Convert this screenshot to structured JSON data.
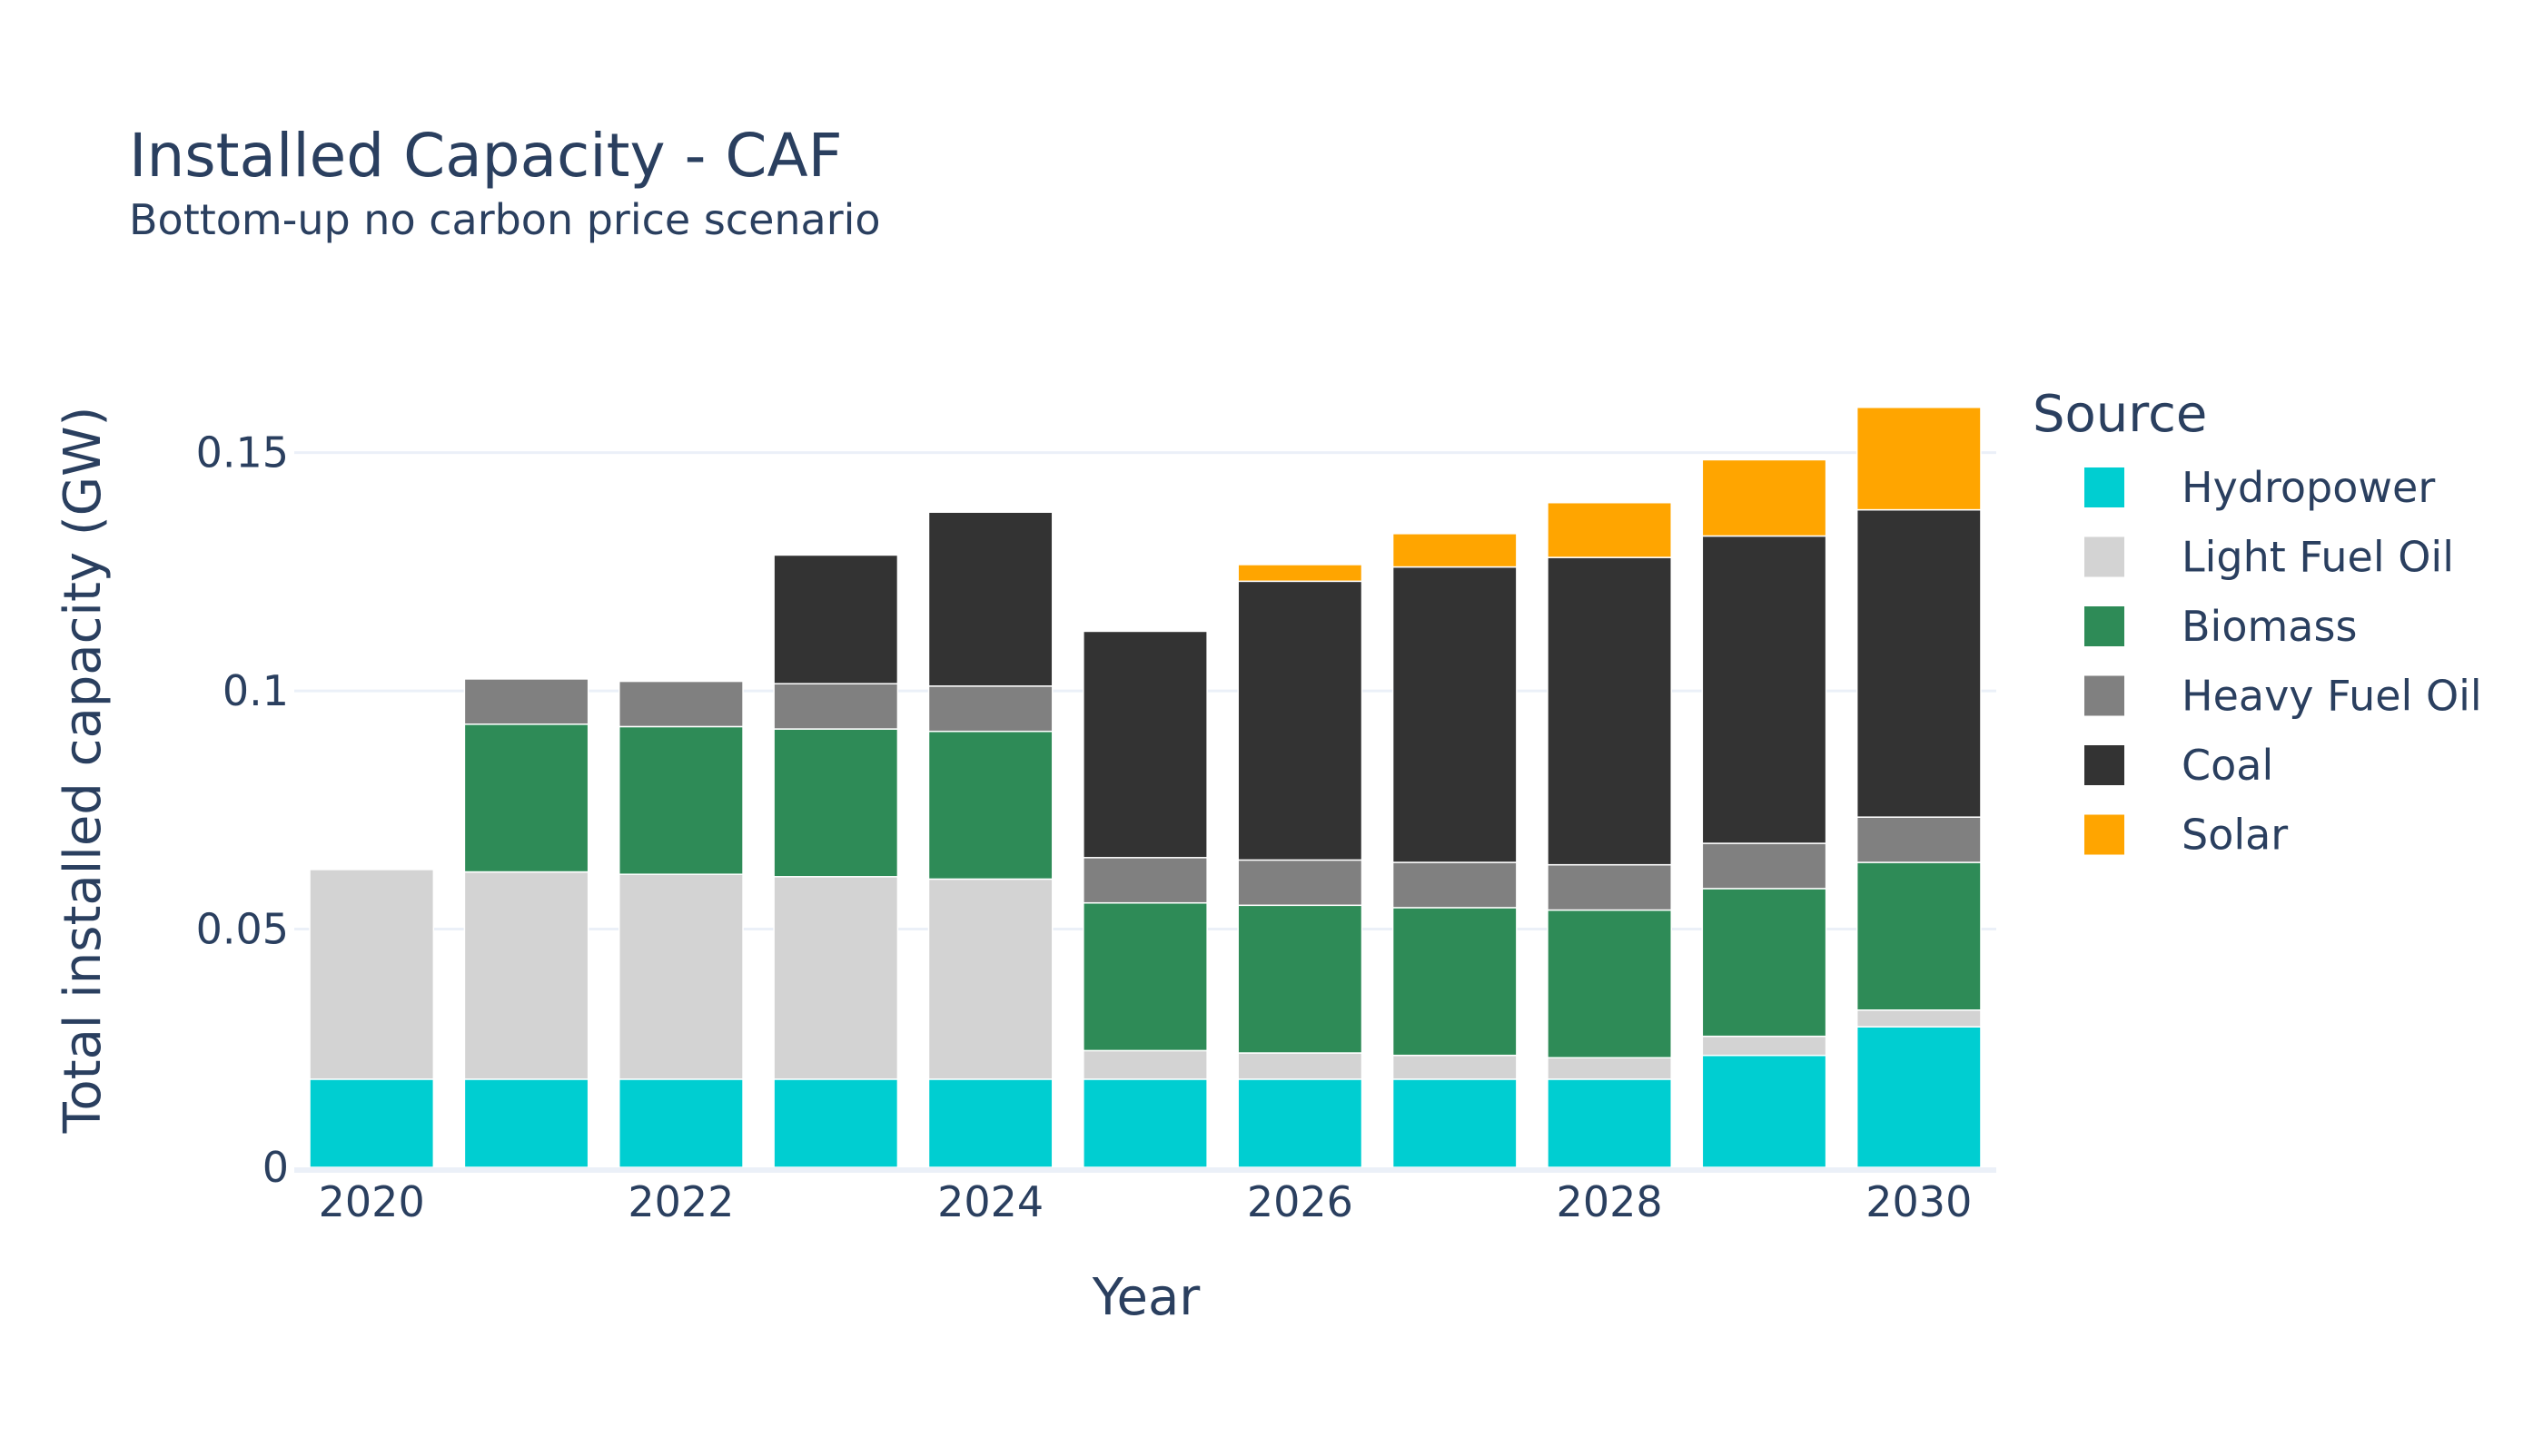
{
  "chart_data": {
    "type": "bar",
    "stacked": true,
    "title": "Installed Capacity - CAF",
    "subtitle": "Bottom-up no carbon price scenario",
    "xlabel": "Year",
    "ylabel": "Total installed capacity (GW)",
    "x": [
      2020,
      2021,
      2022,
      2023,
      2024,
      2025,
      2026,
      2027,
      2028,
      2029,
      2030
    ],
    "x_ticks": [
      "2020",
      "2022",
      "2024",
      "2026",
      "2028",
      "2030"
    ],
    "y_ticks": [
      "0",
      "0.05",
      "0.1",
      "0.15"
    ],
    "ylim": [
      0,
      0.1665
    ],
    "grid": true,
    "legend_title": "Source",
    "legend_position": "right",
    "series": [
      {
        "name": "Hydropower",
        "color": "#00ced1",
        "values": [
          0.0185,
          0.0185,
          0.0185,
          0.0185,
          0.0185,
          0.0185,
          0.0185,
          0.0185,
          0.0185,
          0.0235,
          0.0295
        ]
      },
      {
        "name": "Light Fuel Oil",
        "color": "#d3d3d3",
        "values": [
          0.044,
          0.0435,
          0.043,
          0.0425,
          0.042,
          0.006,
          0.0055,
          0.005,
          0.0045,
          0.004,
          0.0035
        ]
      },
      {
        "name": "Biomass",
        "color": "#2e8b57",
        "values": [
          0.0,
          0.031,
          0.031,
          0.031,
          0.031,
          0.031,
          0.031,
          0.031,
          0.031,
          0.031,
          0.031
        ]
      },
      {
        "name": "Heavy Fuel Oil",
        "color": "#808080",
        "values": [
          0.0,
          0.0095,
          0.0095,
          0.0095,
          0.0095,
          0.0095,
          0.0095,
          0.0095,
          0.0095,
          0.0095,
          0.0095
        ]
      },
      {
        "name": "Coal",
        "color": "#333333",
        "values": [
          0.0,
          0.0,
          0.0,
          0.027,
          0.0365,
          0.0475,
          0.0585,
          0.062,
          0.0645,
          0.0645,
          0.0645
        ]
      },
      {
        "name": "Solar",
        "color": "#ffa500",
        "values": [
          0.0,
          0.0,
          0.0,
          0.0,
          0.0,
          0.0,
          0.0035,
          0.007,
          0.0115,
          0.016,
          0.0215
        ]
      }
    ]
  }
}
